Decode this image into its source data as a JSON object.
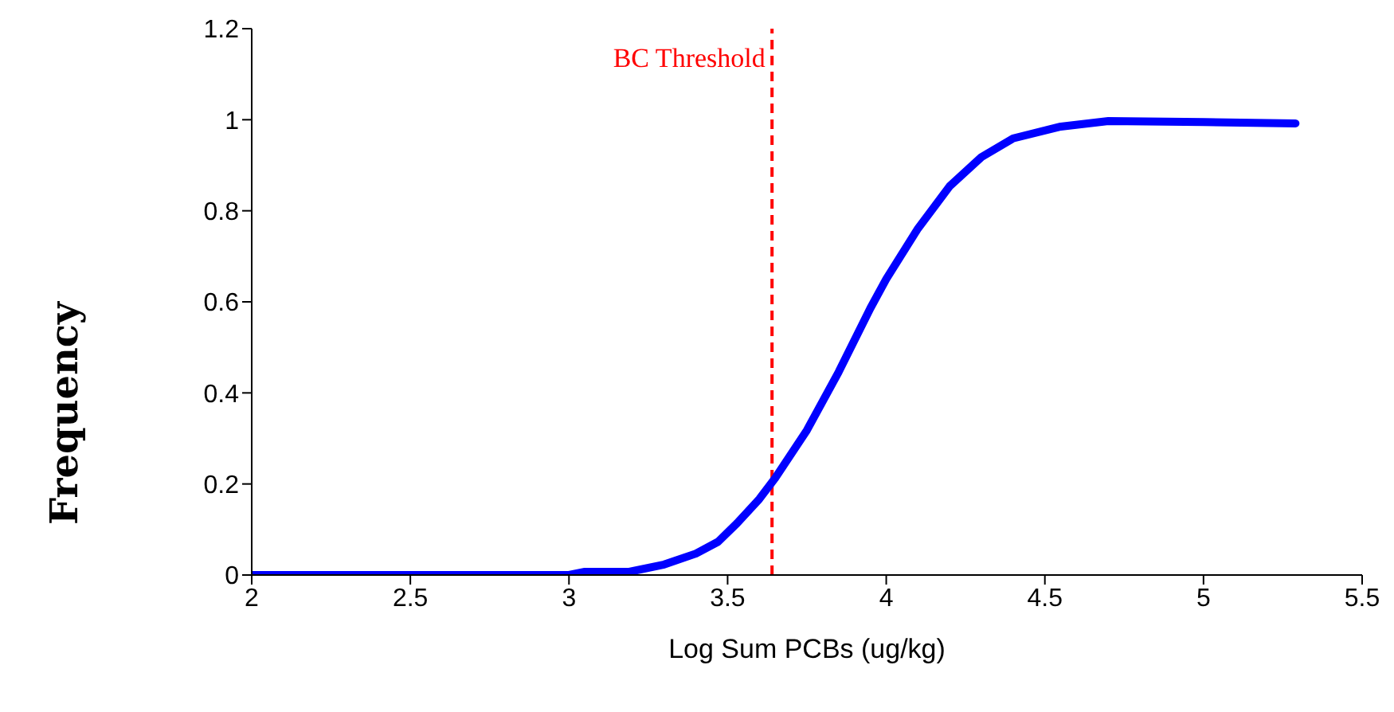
{
  "chart_data": {
    "type": "line",
    "xlabel": "Log Sum PCBs  (ug/kg)",
    "ylabel": "Frequency",
    "x": [
      2,
      2.5,
      3,
      3.05,
      3.19,
      3.3,
      3.4,
      3.47,
      3.53,
      3.6,
      3.65,
      3.75,
      3.85,
      3.95,
      4,
      4.1,
      4.2,
      4.3,
      4.4,
      4.55,
      4.7,
      5,
      5.29
    ],
    "series": [
      {
        "color": "#0000ff",
        "values": [
          0,
          0,
          0,
          0.007,
          0.007,
          0.023,
          0.047,
          0.073,
          0.114,
          0.167,
          0.213,
          0.318,
          0.446,
          0.586,
          0.65,
          0.761,
          0.854,
          0.918,
          0.959,
          0.985,
          0.997,
          0.995,
          0.992
        ]
      }
    ],
    "xlim": [
      2,
      5.5
    ],
    "xticks": [
      2,
      2.5,
      3,
      3.5,
      4,
      4.5,
      5,
      5.5
    ],
    "ylim": [
      0,
      1.2
    ],
    "yticks": [
      0,
      0.2,
      0.4,
      0.6,
      0.8,
      1,
      1.2
    ],
    "ref_lines": [
      {
        "axis": "x",
        "value": 3.64,
        "label": "BC Threshold",
        "color": "#ff0000",
        "line_style": "dashed"
      }
    ],
    "grid": false,
    "legend": false,
    "marker": "none",
    "line_style": "solid"
  }
}
